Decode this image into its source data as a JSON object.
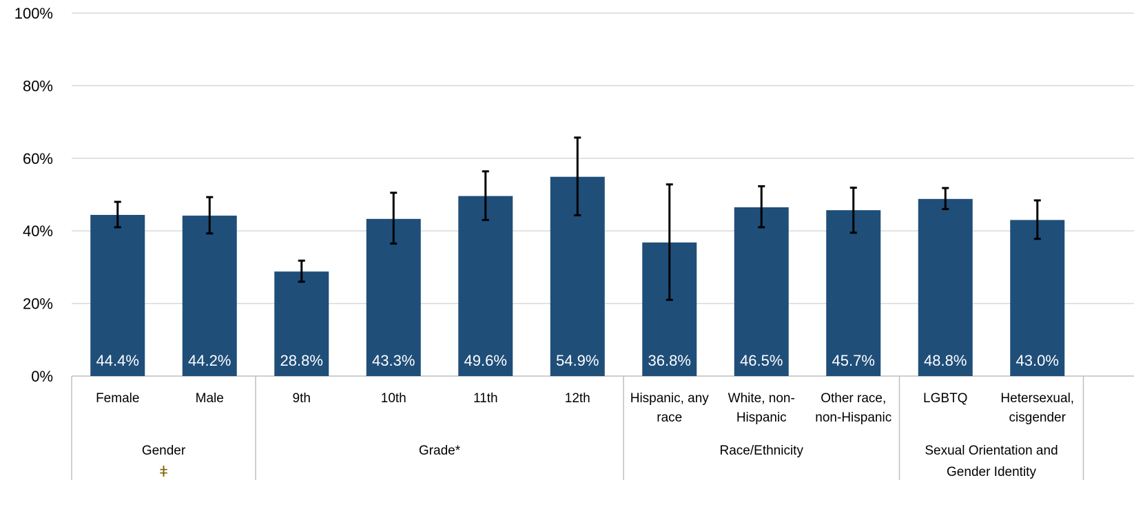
{
  "colors": {
    "bar": "#1f4e79",
    "grid": "#d9d9d9",
    "axis": "#bfbfbf",
    "error_bar": "#000000",
    "data_label": "#ffffff",
    "footnote_mark": "#7f6000"
  },
  "chart_data": {
    "type": "bar",
    "ylim": [
      0,
      100
    ],
    "yticks": [
      0,
      20,
      40,
      60,
      80,
      100
    ],
    "ytick_labels": [
      "0%",
      "20%",
      "40%",
      "60%",
      "80%",
      "100%"
    ],
    "grid": true,
    "categories": [
      [
        "Female"
      ],
      [
        "Male"
      ],
      [
        "9th"
      ],
      [
        "10th"
      ],
      [
        "11th"
      ],
      [
        "12th"
      ],
      [
        "Hispanic, any",
        "race"
      ],
      [
        "White, non-",
        "Hispanic"
      ],
      [
        "Other race,",
        "non-Hispanic"
      ],
      [
        "LGBTQ"
      ],
      [
        "Hetersexual,",
        "cisgender"
      ]
    ],
    "values": [
      44.4,
      44.2,
      28.8,
      43.3,
      49.6,
      54.9,
      36.8,
      46.5,
      45.7,
      48.8,
      43.0
    ],
    "value_labels": [
      "44.4%",
      "44.2%",
      "28.8%",
      "43.3%",
      "49.6%",
      "54.9%",
      "36.8%",
      "46.5%",
      "45.7%",
      "48.8%",
      "43.0%"
    ],
    "error_low": [
      41.0,
      39.3,
      26.0,
      36.5,
      43.0,
      44.3,
      21.0,
      41.0,
      39.5,
      46.0,
      37.8
    ],
    "error_high": [
      48.0,
      49.3,
      31.8,
      50.5,
      56.4,
      65.7,
      52.8,
      52.3,
      51.9,
      51.8,
      48.4
    ],
    "groups": [
      {
        "label": [
          "Gender"
        ],
        "mark": "ǂ",
        "start": 0,
        "count": 2
      },
      {
        "label": [
          "Grade*"
        ],
        "start": 2,
        "count": 4
      },
      {
        "label": [
          "Race/Ethnicity"
        ],
        "start": 6,
        "count": 3
      },
      {
        "label": [
          "Sexual Orientation and",
          "Gender Identity"
        ],
        "start": 9,
        "count": 2
      }
    ]
  }
}
